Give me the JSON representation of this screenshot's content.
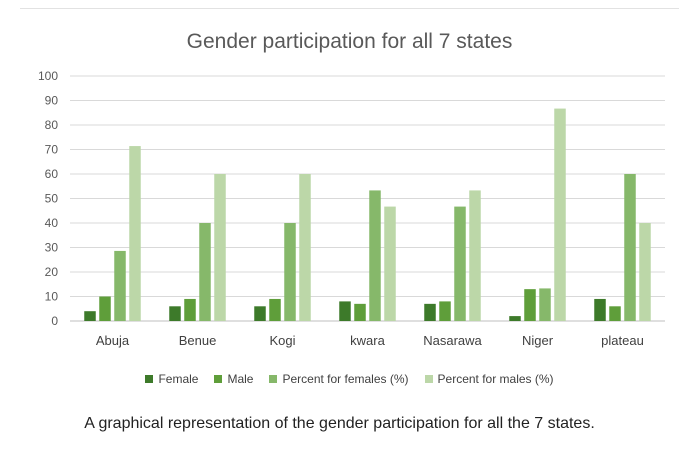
{
  "chart_data": {
    "type": "bar",
    "title": "Gender participation for all 7 states",
    "categories": [
      "Abuja",
      "Benue",
      "Kogi",
      "kwara",
      "Nasarawa",
      "Niger",
      "plateau"
    ],
    "series": [
      {
        "name": "Female",
        "color": "#3d7a2a",
        "values": [
          4,
          6,
          6,
          8,
          7,
          2,
          9
        ]
      },
      {
        "name": "Male",
        "color": "#5f9e3a",
        "values": [
          10,
          9,
          9,
          7,
          8,
          13,
          6
        ]
      },
      {
        "name": "Percent for females (%)",
        "color": "#86b86a",
        "values": [
          28.6,
          40,
          40,
          53.3,
          46.7,
          13.3,
          60
        ]
      },
      {
        "name": "Percent for males (%)",
        "color": "#bcd7a8",
        "values": [
          71.4,
          60,
          60,
          46.7,
          53.3,
          86.7,
          40
        ]
      }
    ],
    "yticks": [
      0,
      10,
      20,
      30,
      40,
      50,
      60,
      70,
      80,
      90,
      100
    ],
    "ylim": [
      0,
      100
    ],
    "grid": true,
    "legend": "bottom"
  },
  "caption": "A graphical representation of the gender participation for all the 7 states."
}
